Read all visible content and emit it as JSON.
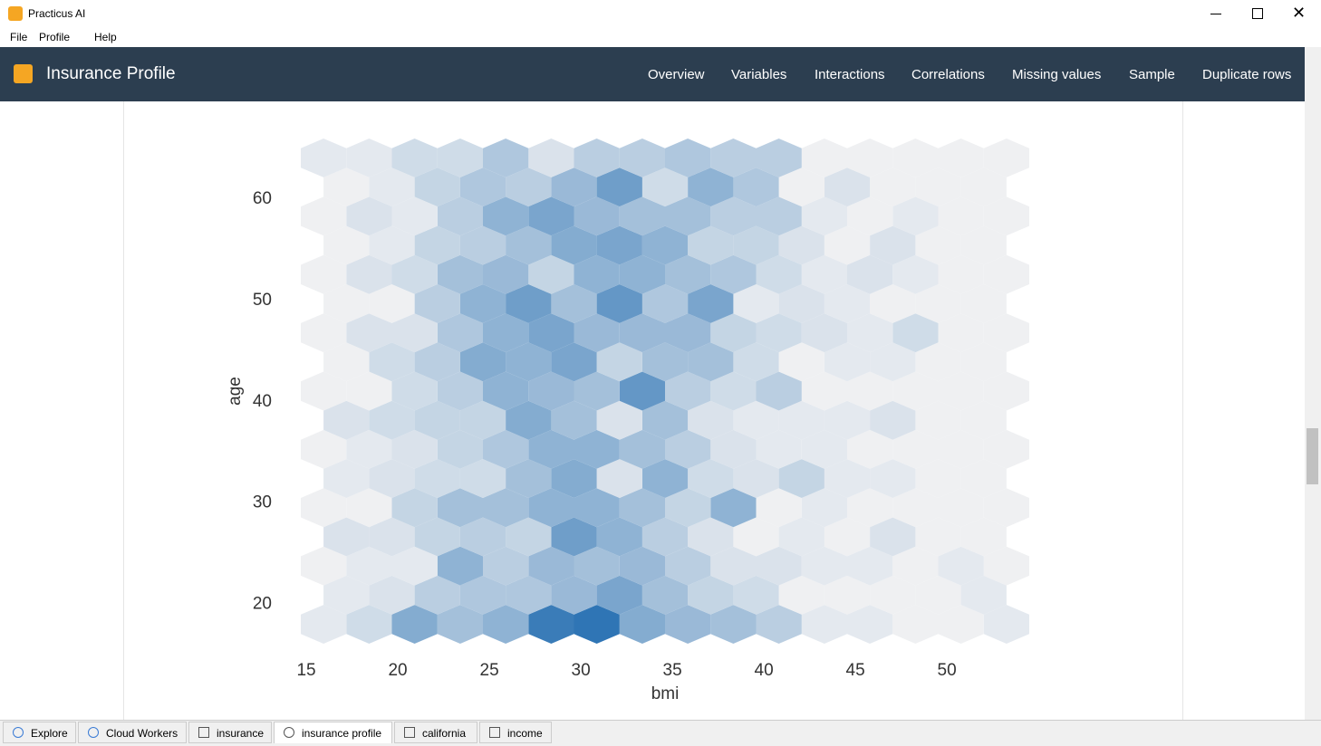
{
  "window": {
    "title": "Practicus AI"
  },
  "menu": [
    "File",
    "Profile",
    "Help"
  ],
  "header": {
    "title": "Insurance Profile",
    "nav": [
      "Overview",
      "Variables",
      "Interactions",
      "Correlations",
      "Missing values",
      "Sample",
      "Duplicate rows"
    ]
  },
  "chart_data": {
    "type": "hexbin",
    "xlabel": "bmi",
    "ylabel": "age",
    "xlim": [
      14.7,
      54.5
    ],
    "ylim": [
      16.1,
      66.0
    ],
    "xticks": [
      15,
      20,
      25,
      30,
      35,
      40,
      45,
      50
    ],
    "yticks": [
      20,
      30,
      40,
      50,
      60
    ],
    "counts": [
      [
        1,
        1,
        3,
        3,
        6,
        2,
        5,
        5,
        6,
        5,
        5,
        0,
        0,
        0,
        0,
        0
      ],
      [
        0,
        1,
        4,
        6,
        5,
        8,
        12,
        3,
        9,
        6,
        0,
        2,
        0,
        0,
        0
      ],
      [
        0,
        2,
        1,
        5,
        9,
        11,
        8,
        7,
        7,
        5,
        5,
        1,
        0,
        1,
        0,
        0
      ],
      [
        0,
        1,
        4,
        5,
        7,
        10,
        11,
        9,
        4,
        4,
        2,
        0,
        2,
        0,
        0
      ],
      [
        0,
        2,
        3,
        7,
        8,
        4,
        9,
        9,
        7,
        6,
        3,
        1,
        2,
        1,
        0,
        0
      ],
      [
        0,
        0,
        5,
        9,
        12,
        7,
        13,
        6,
        11,
        1,
        2,
        1,
        0,
        0,
        0
      ],
      [
        0,
        2,
        2,
        6,
        9,
        11,
        8,
        8,
        8,
        4,
        3,
        2,
        1,
        3,
        0,
        0
      ],
      [
        0,
        3,
        5,
        10,
        9,
        11,
        4,
        7,
        7,
        3,
        0,
        1,
        1,
        0,
        0
      ],
      [
        0,
        0,
        3,
        5,
        9,
        8,
        7,
        13,
        5,
        3,
        5,
        0,
        0,
        0,
        0,
        0
      ],
      [
        2,
        3,
        4,
        4,
        10,
        7,
        2,
        7,
        2,
        1,
        1,
        1,
        2,
        0,
        0
      ],
      [
        0,
        1,
        2,
        4,
        6,
        9,
        9,
        7,
        5,
        2,
        1,
        1,
        0,
        0,
        0,
        0
      ],
      [
        1,
        2,
        3,
        3,
        7,
        10,
        2,
        9,
        3,
        2,
        4,
        1,
        1,
        0,
        0
      ],
      [
        0,
        0,
        4,
        7,
        7,
        9,
        9,
        7,
        4,
        9,
        0,
        1,
        0,
        0,
        0,
        0
      ],
      [
        2,
        2,
        4,
        5,
        4,
        12,
        9,
        5,
        2,
        0,
        1,
        0,
        2,
        0,
        0
      ],
      [
        0,
        1,
        1,
        9,
        5,
        8,
        7,
        8,
        5,
        2,
        2,
        1,
        1,
        0,
        1,
        0
      ],
      [
        1,
        2,
        5,
        6,
        6,
        8,
        11,
        7,
        4,
        3,
        0,
        0,
        0,
        0,
        1
      ],
      [
        1,
        3,
        10,
        7,
        9,
        17,
        18,
        10,
        8,
        7,
        5,
        1,
        1,
        0,
        0,
        1
      ]
    ]
  },
  "tabs": [
    "Explore",
    "Cloud Workers",
    "insurance",
    "insurance profile",
    "california",
    "income"
  ]
}
